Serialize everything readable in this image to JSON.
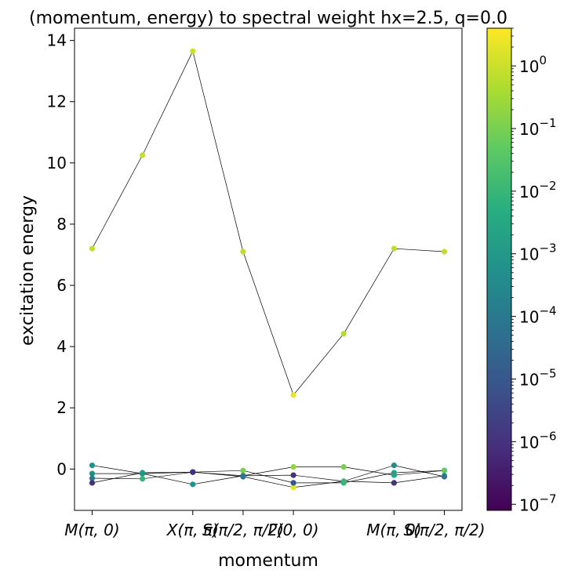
{
  "chart_data": {
    "type": "scatter",
    "title": "(momentum, energy) to spectral weight hx=2.5, q=0.0",
    "xlabel": "momentum",
    "ylabel": "excitation energy",
    "xlim": [
      -0.35,
      7.35
    ],
    "ylim": [
      -1.35,
      14.4
    ],
    "yticks": [
      0,
      2,
      4,
      6,
      8,
      10,
      12,
      14
    ],
    "ytick_labels": [
      "0",
      "2",
      "4",
      "6",
      "8",
      "10",
      "12",
      "14"
    ],
    "xticks": [
      0,
      2,
      3,
      4,
      6,
      7
    ],
    "xtick_labels": [
      "M(π, 0)",
      "X(π, π)",
      "S(π/2, π/2)",
      "Γ(0, 0)",
      "M(π, 0)",
      "S(π/2, π/2)"
    ],
    "x": [
      0,
      1,
      2,
      3,
      4,
      5,
      6,
      7
    ],
    "line_color": "#000000",
    "series": [
      {
        "values": [
          7.2,
          10.25,
          13.65,
          7.1,
          2.42,
          4.42,
          7.2,
          7.1
        ],
        "weights": [
          0.7,
          0.8,
          0.9,
          0.7,
          2.0,
          0.5,
          0.7,
          0.7
        ]
      },
      {
        "values": [
          0.12,
          -0.15,
          -0.1,
          -0.25,
          -0.6,
          -0.4,
          0.12,
          -0.25
        ],
        "weights": [
          0.0006,
          0.02,
          1e-07,
          1e-05,
          2.0,
          0.01,
          0.0004,
          1e-05
        ]
      },
      {
        "values": [
          -0.15,
          -0.15,
          -0.5,
          -0.22,
          0.07,
          0.07,
          -0.2,
          -0.05
        ],
        "weights": [
          0.0005,
          0.001,
          0.0006,
          1e-05,
          0.2,
          0.1,
          0.003,
          0.03
        ]
      },
      {
        "values": [
          -0.3,
          -0.32,
          -0.1,
          -0.05,
          -0.45,
          -0.45,
          -0.12,
          -0.05
        ],
        "weights": [
          0.0001,
          0.01,
          1e-07,
          0.1,
          1e-05,
          0.01,
          0.002,
          0.05
        ]
      },
      {
        "values": [
          -0.45,
          -0.12,
          -0.1,
          -0.22,
          -0.2,
          -0.4,
          -0.45,
          -0.22
        ],
        "weights": [
          1e-06,
          0.001,
          1e-06,
          0.0001,
          1e-06,
          0.01,
          1e-06,
          0.0001
        ]
      }
    ],
    "colorbar": {
      "colormap": "viridis",
      "scale": "log",
      "range": [
        8e-08,
        4.0
      ],
      "ticks": [
        1e-07,
        1e-06,
        1e-05,
        0.0001,
        0.001,
        0.01,
        0.1,
        1
      ],
      "tick_labels": [
        {
          "base": "10",
          "exp": "−7"
        },
        {
          "base": "10",
          "exp": "−6"
        },
        {
          "base": "10",
          "exp": "−5"
        },
        {
          "base": "10",
          "exp": "−4"
        },
        {
          "base": "10",
          "exp": "−3"
        },
        {
          "base": "10",
          "exp": "−2"
        },
        {
          "base": "10",
          "exp": "−1"
        },
        {
          "base": "10",
          "exp": "0"
        }
      ]
    },
    "grid": false
  }
}
